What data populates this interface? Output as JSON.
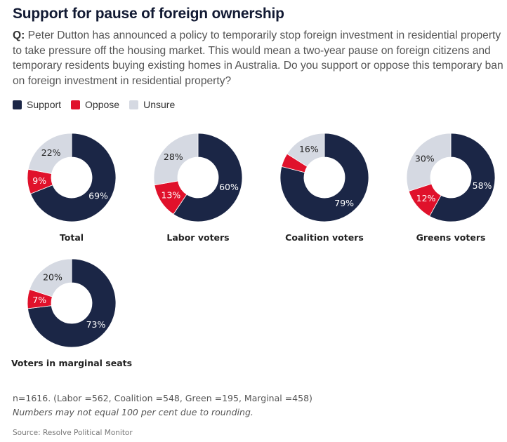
{
  "title": "Support for pause of foreign ownership",
  "question_prefix": "Q:",
  "question": " Peter Dutton has announced a policy to temporarily stop foreign investment in residential property to take pressure off the housing market. This would mean a two-year pause on foreign citizens and temporary residents buying existing homes in Australia. Do you support or oppose this temporary ban on foreign investment in residential property?",
  "legend": [
    {
      "label": "Support",
      "color": "#1b2646"
    },
    {
      "label": "Oppose",
      "color": "#e0112b"
    },
    {
      "label": "Unsure",
      "color": "#d5d9e2"
    }
  ],
  "chart_data": {
    "type": "pie",
    "subtype": "donut",
    "title": "Support for pause of foreign ownership",
    "series_names": [
      "Support",
      "Oppose",
      "Unsure"
    ],
    "colors": {
      "Support": "#1b2646",
      "Oppose": "#e0112b",
      "Unsure": "#d5d9e2"
    },
    "legend_position": "top-left",
    "charts": [
      {
        "name": "Total",
        "values": {
          "Support": 69,
          "Oppose": 9,
          "Unsure": 22
        },
        "labels": {
          "Support": "69%",
          "Oppose": "9%",
          "Unsure": "22%"
        }
      },
      {
        "name": "Labor voters",
        "values": {
          "Support": 60,
          "Oppose": 13,
          "Unsure": 28
        },
        "labels": {
          "Support": "60%",
          "Oppose": "13%",
          "Unsure": "28%"
        }
      },
      {
        "name": "Coalition voters",
        "values": {
          "Support": 79,
          "Oppose": 5,
          "Unsure": 16
        },
        "labels": {
          "Support": "79%",
          "Oppose": "",
          "Unsure": "16%"
        }
      },
      {
        "name": "Greens voters",
        "values": {
          "Support": 58,
          "Oppose": 12,
          "Unsure": 30
        },
        "labels": {
          "Support": "58%",
          "Oppose": "12%",
          "Unsure": "30%"
        }
      },
      {
        "name": "Voters in marginal seats",
        "values": {
          "Support": 73,
          "Oppose": 7,
          "Unsure": 20
        },
        "labels": {
          "Support": "73%",
          "Oppose": "7%",
          "Unsure": "20%"
        }
      }
    ]
  },
  "footnote": "n=1616. (Labor =562, Coalition =548, Green =195, Marginal =458)",
  "rounding_note": "Numbers may not equal 100 per cent due to rounding.",
  "source": "Source: Resolve Political Monitor"
}
